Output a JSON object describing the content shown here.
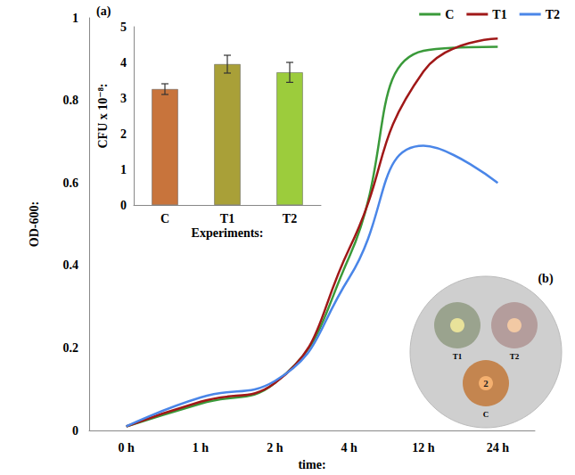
{
  "chart_data": [
    {
      "type": "line",
      "x_label": "time:",
      "y_label": "OD-600:",
      "categories": [
        "0 h",
        "1 h",
        "2 h",
        "4 h",
        "12 h",
        "24 h"
      ],
      "series": [
        {
          "name": "C",
          "color": "#3a9a3a",
          "values": [
            0.01,
            0.065,
            0.115,
            0.42,
            0.92,
            0.93
          ]
        },
        {
          "name": "T1",
          "color": "#a01818",
          "values": [
            0.01,
            0.07,
            0.115,
            0.44,
            0.87,
            0.95
          ]
        },
        {
          "name": "T2",
          "color": "#4a86e8",
          "values": [
            0.01,
            0.08,
            0.12,
            0.37,
            0.69,
            0.6
          ]
        }
      ],
      "ylim": [
        0,
        1
      ],
      "yticks": [
        0,
        0.2,
        0.4,
        0.6,
        0.8,
        1
      ],
      "grid": false,
      "legend": "top-right"
    },
    {
      "type": "bar",
      "title": "(a)",
      "x_label": "Experiments:",
      "y_label": "CFU x 10⁻⁸:",
      "categories": [
        "C",
        "T1",
        "T2"
      ],
      "values": [
        3.25,
        3.95,
        3.72
      ],
      "errors": [
        0.15,
        0.25,
        0.28
      ],
      "colors": [
        "#c8743c",
        "#a9a038",
        "#9ccc3c"
      ],
      "ylim": [
        0,
        5
      ],
      "yticks": [
        0,
        1,
        2,
        3,
        4,
        5
      ],
      "grid": false
    }
  ],
  "photo_panel": {
    "title": "(b)",
    "plates": [
      {
        "label": "T1"
      },
      {
        "label": "T2"
      },
      {
        "label": "C",
        "disc_text": "2"
      }
    ]
  }
}
